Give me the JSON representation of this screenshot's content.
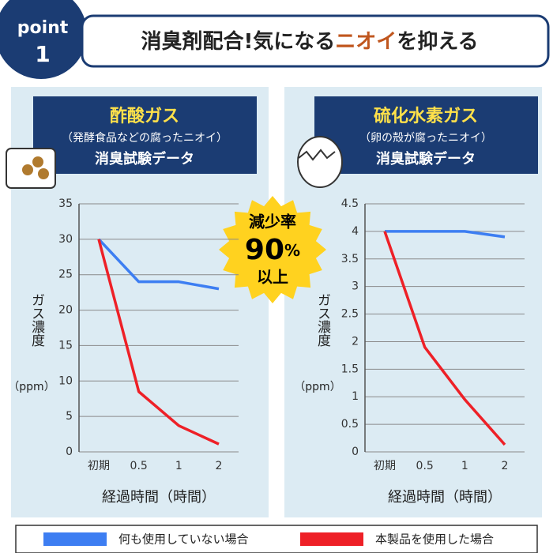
{
  "header": {
    "badge_word": "point",
    "badge_number": "1",
    "title_start": "消臭剤配合!気になる",
    "title_highlight": "ニオイ",
    "title_end": "を抑える"
  },
  "badge": {
    "line1": "減少率",
    "number": "90",
    "unit": "%",
    "line3": "以上"
  },
  "chart_data": [
    {
      "type": "line",
      "title": "酢酸ガス",
      "subtitle": "（発酵食品などの腐ったニオイ）",
      "caption": "消臭試験データ",
      "y_label": "ガス濃度",
      "y_unit": "（ppm）",
      "x_label": "経過時間（時間）",
      "categories": [
        "初期",
        "0.5",
        "1",
        "2"
      ],
      "ylim": [
        0,
        35
      ],
      "yticks": [
        0,
        5,
        10,
        15,
        20,
        25,
        30,
        35
      ],
      "grid": true,
      "series": [
        {
          "name": "何も使用していない場合",
          "color": "#3d7ef2",
          "values": [
            30,
            24,
            24,
            23
          ]
        },
        {
          "name": "本製品を使用した場合",
          "color": "#ee2027",
          "values": [
            30,
            8.5,
            3.7,
            1.1
          ]
        }
      ]
    },
    {
      "type": "line",
      "title": "硫化水素ガス",
      "subtitle": "（卵の殻が腐ったニオイ）",
      "caption": "消臭試験データ",
      "y_label": "ガス濃度",
      "y_unit": "（ppm）",
      "x_label": "経過時間（時間）",
      "categories": [
        "初期",
        "0.5",
        "1",
        "2"
      ],
      "ylim": [
        0,
        4.5
      ],
      "yticks": [
        0,
        0.5,
        1,
        1.5,
        2,
        2.5,
        3,
        3.5,
        4,
        4.5
      ],
      "grid": true,
      "series": [
        {
          "color": "#3d7ef2",
          "values": [
            4,
            4,
            4,
            3.9
          ]
        },
        {
          "color": "#ee2027",
          "values": [
            4,
            1.9,
            0.95,
            0.13
          ]
        }
      ]
    }
  ]
}
